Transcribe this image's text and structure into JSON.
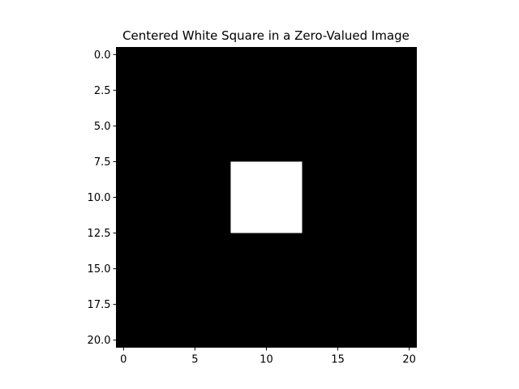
{
  "chart_data": {
    "type": "heatmap",
    "title": "Centered White Square in a Zero-Valued Image",
    "xlabel": "",
    "ylabel": "",
    "colormap": "gray",
    "image_size": [
      21,
      21
    ],
    "background_value": 0,
    "square": {
      "value": 1,
      "rows": [
        8,
        12
      ],
      "cols": [
        8,
        12
      ]
    },
    "value_colors": {
      "0": "#000000",
      "1": "#ffffff"
    },
    "xlim": [
      -0.5,
      20.5
    ],
    "ylim": [
      20.5,
      -0.5
    ],
    "x_ticks": [
      0,
      5,
      10,
      15,
      20
    ],
    "x_tick_labels": [
      "0",
      "5",
      "10",
      "15",
      "20"
    ],
    "y_ticks": [
      0,
      2.5,
      5,
      7.5,
      10,
      12.5,
      15,
      17.5,
      20
    ],
    "y_tick_labels": [
      "0.0",
      "2.5",
      "5.0",
      "7.5",
      "10.0",
      "12.5",
      "15.0",
      "17.5",
      "20.0"
    ],
    "grid": false,
    "legend": "none"
  }
}
